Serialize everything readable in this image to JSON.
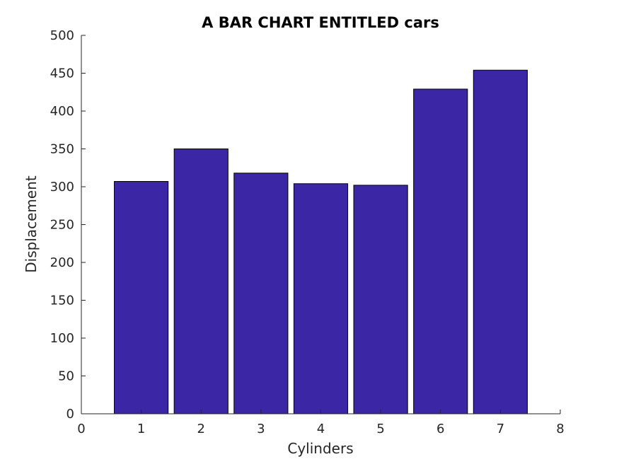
{
  "chart_data": {
    "type": "bar",
    "title": "A BAR CHART ENTITLED cars",
    "xlabel": "Cylinders",
    "ylabel": "Displacement",
    "categories": [
      1,
      2,
      3,
      4,
      5,
      6,
      7
    ],
    "values": [
      307,
      350,
      318,
      304,
      302,
      429,
      454
    ],
    "xlim": [
      0,
      8
    ],
    "ylim": [
      0,
      500
    ],
    "xticks": [
      0,
      1,
      2,
      3,
      4,
      5,
      6,
      7,
      8
    ],
    "yticks": [
      0,
      50,
      100,
      150,
      200,
      250,
      300,
      350,
      400,
      450,
      500
    ],
    "bar_color": "#3b26a5",
    "grid": false,
    "legend": "none"
  }
}
